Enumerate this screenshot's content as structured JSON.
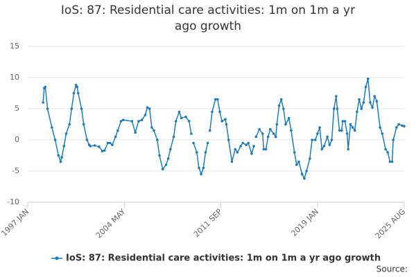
{
  "chart_data": {
    "type": "line",
    "title": "IoS: 87: Residential care activities: 1m on 1m a yr ago growth",
    "source": "Source:",
    "x": [
      "1998 MAR",
      "1998 APR",
      "1998 MAY",
      "1998 JUL",
      "1998 NOV",
      "1999 FEB",
      "1999 MAY",
      "1999 JUL",
      "1999 AUG",
      "1999 OCT",
      "1999 DEC",
      "2000 MAR",
      "2000 MAY",
      "2000 JUL",
      "2000 SEP",
      "2000 OCT",
      "2000 NOV",
      "2001 FEB",
      "2001 APR",
      "2001 JUL",
      "2001 SEP",
      "2001 OCT",
      "2002 FEB",
      "2002 JUN",
      "2002 SEP",
      "2002 NOV",
      "2003 FEB",
      "2003 APR",
      "2003 JUN",
      "2003 SEP",
      "2003 NOV",
      "2004 FEB",
      "2004 APR",
      "2004 DEC",
      "2005 MAR",
      "2005 JUN",
      "2005 SEP",
      "2005 DEC",
      "2006 FEB",
      "2006 APR",
      "2006 JUN",
      "2006 AUG",
      "2006 NOV",
      "2007 JAN",
      "2007 APR",
      "2007 JUL",
      "2007 SEP",
      "2007 NOV",
      "2008 FEB",
      "2008 APR",
      "2008 JUL",
      "2008 SEP",
      "2009 JAN",
      "2009 APR",
      "2009 JUN",
      "2009 JUL",
      "2009 AUG",
      "2009 NOV",
      "2010 JAN",
      "2010 MAR",
      "2010 MAY",
      "2010 JUL",
      "2010 SEP",
      "2010 OCT",
      "2010 NOV",
      "2011 JAN",
      "2011 APR",
      "2011 JUN",
      "2011 AUG",
      "2011 OCT",
      "2012 JAN",
      "2012 FEB",
      "2012 APR",
      "2012 JUL",
      "2012 OCT",
      "2012 DEC",
      "2013 MAR",
      "2013 MAY",
      "2013 AUG",
      "2013 OCT",
      "2014 JAN",
      "2014 MAR",
      "2014 APR",
      "2014 MAY",
      "2014 AUG",
      "2014 NOV",
      "2014 DEC",
      "2015 FEB",
      "2015 APR",
      "2015 JUN",
      "2015 SEP",
      "2015 NOV",
      "2015 DEC",
      "2016 FEB",
      "2016 APR",
      "2016 JUN",
      "2016 AUG",
      "2016 NOV",
      "2017 JAN",
      "2017 APR",
      "2017 JUN",
      "2017 AUG",
      "2017 NOV",
      "2018 JAN",
      "2018 MAR",
      "2018 JUN",
      "2018 AUG",
      "2018 NOV",
      "2019 JAN",
      "2019 MAR",
      "2019 MAY",
      "2019 JUL",
      "2019 OCT",
      "2019 DEC",
      "2020 FEB",
      "2020 APR",
      "2020 JUN",
      "2020 JUL",
      "2020 SEP",
      "2020 NOV",
      "2020 DEC",
      "2021 FEB",
      "2021 APR",
      "2021 MAY",
      "2021 JUL",
      "2021 SEP",
      "2021 NOV",
      "2022 JAN",
      "2022 MAR",
      "2022 MAY",
      "2022 JUL",
      "2022 SEP",
      "2022 NOV",
      "2023 JAN",
      "2023 MAR",
      "2023 MAY",
      "2023 JUL",
      "2023 OCT",
      "2023 DEC",
      "2024 MAR",
      "2024 MAY",
      "2024 JUL",
      "2024 SEP",
      "2024 OCT",
      "2025 JAN",
      "2025 MAR",
      "2025 JUN",
      "2025 AUG"
    ],
    "series": [
      {
        "name": "IoS: 87: Residential care activities: 1m on 1m a yr ago growth",
        "color": "#1f7bb6",
        "values": [
          6.0,
          8.3,
          8.5,
          5,
          2,
          0,
          -2.5,
          -3.5,
          -2.8,
          -1,
          1,
          2.5,
          5,
          7.5,
          8.8,
          8.5,
          7.5,
          5,
          2.5,
          0,
          -0.8,
          -1,
          -0.9,
          -1.1,
          -1.8,
          -1.7,
          -0.5,
          -0.5,
          -0.8,
          0.5,
          1.5,
          3,
          3.2,
          3.0,
          1.2,
          3.0,
          3.2,
          4,
          5.2,
          5,
          2,
          1.5,
          0,
          -2.5,
          -4.7,
          -4,
          -3,
          -1.5,
          0.5,
          3,
          4.5,
          3.5,
          3.7,
          3,
          1,
          null,
          -0.5,
          -2,
          -4.5,
          -5.5,
          -4.5,
          -2,
          -0.5,
          null,
          1.5,
          4.5,
          6.5,
          6.5,
          4.5,
          3,
          3.3,
          2.5,
          0,
          -3.5,
          -1.5,
          -2.0,
          -1,
          -0.5,
          -0.8,
          -0.5,
          -2.2,
          -1,
          null,
          0.5,
          1.7,
          1,
          -1.5,
          -1.5,
          0.5,
          1.7,
          1,
          0.5,
          2.5,
          5.5,
          6.5,
          5,
          2.5,
          3.5,
          1.5,
          -2,
          -4,
          -3.5,
          -5.5,
          -6.2,
          -5,
          -3,
          0,
          0,
          1,
          2,
          -1.5,
          -1,
          0.5,
          -0.8,
          0,
          5,
          7,
          5,
          1.5,
          1.5,
          3,
          3,
          1,
          -1.5,
          2.5,
          2,
          1.5,
          4.5,
          6.5,
          5,
          6,
          8.5,
          9.8,
          6,
          5.2,
          7,
          6.2,
          2,
          1,
          -1.5,
          -2,
          -3.5,
          -3.5,
          0,
          2,
          2.5,
          2.3,
          2.2
        ]
      }
    ],
    "xlim": [
      "1997 JAN",
      "2025 AUG"
    ],
    "xticks": [
      "1997 JAN",
      "2004 MAY",
      "2011 SEP",
      "2019 JAN",
      "2025 AUG"
    ],
    "ylim": [
      -10,
      15
    ],
    "yticks": [
      -10,
      -5,
      0,
      5,
      10,
      15
    ],
    "grid": true
  }
}
